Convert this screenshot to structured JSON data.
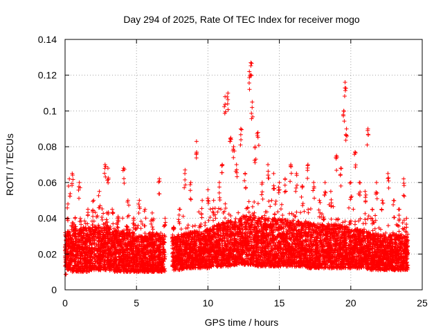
{
  "chart_data": {
    "type": "scatter",
    "title": "Day 294 of 2025, Rate Of TEC Index for receiver mogo",
    "xlabel": "GPS time / hours",
    "ylabel": "ROTI / TECUs",
    "xlim": [
      0,
      25
    ],
    "ylim": [
      0,
      0.14
    ],
    "xticks": [
      "0",
      "5",
      "10",
      "15",
      "20",
      "25"
    ],
    "yticks": [
      "0",
      "0.02",
      "0.04",
      "0.06",
      "0.08",
      "0.1",
      "0.12",
      "0.14"
    ],
    "grid": true,
    "marker": "plus",
    "color": "#ff0000",
    "series": [
      {
        "values": [
          [
            0.1,
            0.018
          ],
          [
            0.2,
            0.048
          ],
          [
            0.3,
            0.062
          ],
          [
            0.5,
            0.065
          ],
          [
            0.7,
            0.04
          ],
          [
            1.0,
            0.06
          ],
          [
            1.3,
            0.035
          ],
          [
            1.6,
            0.045
          ],
          [
            2.0,
            0.05
          ],
          [
            2.4,
            0.055
          ],
          [
            2.8,
            0.07
          ],
          [
            3.0,
            0.068
          ],
          [
            3.3,
            0.045
          ],
          [
            3.7,
            0.04
          ],
          [
            4.1,
            0.068
          ],
          [
            4.4,
            0.05
          ],
          [
            4.8,
            0.04
          ],
          [
            5.2,
            0.05
          ],
          [
            5.6,
            0.045
          ],
          [
            6.1,
            0.043
          ],
          [
            6.6,
            0.062
          ],
          [
            7.0,
            0.04
          ],
          [
            7.6,
            0.035
          ],
          [
            8.0,
            0.045
          ],
          [
            8.4,
            0.067
          ],
          [
            8.8,
            0.06
          ],
          [
            9.2,
            0.083
          ],
          [
            9.6,
            0.05
          ],
          [
            10.0,
            0.056
          ],
          [
            10.4,
            0.05
          ],
          [
            10.8,
            0.06
          ],
          [
            11.0,
            0.07
          ],
          [
            11.2,
            0.108
          ],
          [
            11.4,
            0.11
          ],
          [
            11.6,
            0.085
          ],
          [
            11.8,
            0.08
          ],
          [
            12.0,
            0.07
          ],
          [
            12.3,
            0.09
          ],
          [
            12.6,
            0.065
          ],
          [
            12.9,
            0.122
          ],
          [
            13.0,
            0.127
          ],
          [
            13.1,
            0.105
          ],
          [
            13.3,
            0.08
          ],
          [
            13.5,
            0.088
          ],
          [
            13.8,
            0.06
          ],
          [
            14.2,
            0.07
          ],
          [
            14.6,
            0.065
          ],
          [
            15.0,
            0.06
          ],
          [
            15.4,
            0.062
          ],
          [
            15.8,
            0.07
          ],
          [
            16.2,
            0.065
          ],
          [
            16.6,
            0.058
          ],
          [
            17.0,
            0.07
          ],
          [
            17.4,
            0.06
          ],
          [
            17.8,
            0.05
          ],
          [
            18.2,
            0.06
          ],
          [
            18.6,
            0.055
          ],
          [
            19.0,
            0.075
          ],
          [
            19.3,
            0.068
          ],
          [
            19.5,
            0.1
          ],
          [
            19.6,
            0.116
          ],
          [
            19.7,
            0.09
          ],
          [
            20.0,
            0.06
          ],
          [
            20.3,
            0.077
          ],
          [
            20.6,
            0.06
          ],
          [
            21.0,
            0.055
          ],
          [
            21.2,
            0.09
          ],
          [
            21.5,
            0.045
          ],
          [
            21.8,
            0.06
          ],
          [
            22.2,
            0.05
          ],
          [
            22.6,
            0.065
          ],
          [
            23.0,
            0.05
          ],
          [
            23.4,
            0.045
          ],
          [
            23.7,
            0.062
          ],
          [
            23.9,
            0.04
          ]
        ]
      }
    ],
    "bands": [
      [
        0.0,
        0.012,
        0.032
      ],
      [
        0.5,
        0.01,
        0.035
      ],
      [
        1.0,
        0.01,
        0.034
      ],
      [
        1.5,
        0.01,
        0.035
      ],
      [
        2.0,
        0.011,
        0.036
      ],
      [
        2.5,
        0.011,
        0.035
      ],
      [
        3.0,
        0.011,
        0.036
      ],
      [
        3.5,
        0.01,
        0.034
      ],
      [
        4.0,
        0.01,
        0.033
      ],
      [
        4.5,
        0.01,
        0.032
      ],
      [
        5.0,
        0.01,
        0.031
      ],
      [
        5.5,
        0.01,
        0.03
      ],
      [
        6.0,
        0.01,
        0.031
      ],
      [
        6.5,
        0.01,
        0.032
      ],
      [
        7.0,
        0.01,
        0.03
      ],
      [
        7.5,
        0.011,
        0.03
      ],
      [
        8.0,
        0.011,
        0.031
      ],
      [
        8.5,
        0.012,
        0.032
      ],
      [
        9.0,
        0.012,
        0.033
      ],
      [
        9.5,
        0.012,
        0.033
      ],
      [
        10.0,
        0.012,
        0.034
      ],
      [
        10.5,
        0.013,
        0.036
      ],
      [
        11.0,
        0.013,
        0.038
      ],
      [
        11.5,
        0.013,
        0.039
      ],
      [
        12.0,
        0.014,
        0.04
      ],
      [
        12.5,
        0.014,
        0.041
      ],
      [
        13.0,
        0.014,
        0.042
      ],
      [
        13.5,
        0.013,
        0.041
      ],
      [
        14.0,
        0.013,
        0.04
      ],
      [
        14.5,
        0.013,
        0.04
      ],
      [
        15.0,
        0.013,
        0.04
      ],
      [
        15.5,
        0.013,
        0.039
      ],
      [
        16.0,
        0.013,
        0.039
      ],
      [
        16.5,
        0.013,
        0.038
      ],
      [
        17.0,
        0.012,
        0.038
      ],
      [
        17.5,
        0.012,
        0.037
      ],
      [
        18.0,
        0.012,
        0.037
      ],
      [
        18.5,
        0.012,
        0.037
      ],
      [
        19.0,
        0.012,
        0.037
      ],
      [
        19.5,
        0.012,
        0.036
      ],
      [
        20.0,
        0.012,
        0.035
      ],
      [
        20.5,
        0.012,
        0.034
      ],
      [
        21.0,
        0.012,
        0.033
      ],
      [
        21.5,
        0.011,
        0.032
      ],
      [
        22.0,
        0.011,
        0.031
      ],
      [
        22.5,
        0.011,
        0.031
      ],
      [
        23.0,
        0.011,
        0.031
      ],
      [
        23.5,
        0.011,
        0.031
      ],
      [
        24.0,
        0.011,
        0.03
      ]
    ]
  }
}
